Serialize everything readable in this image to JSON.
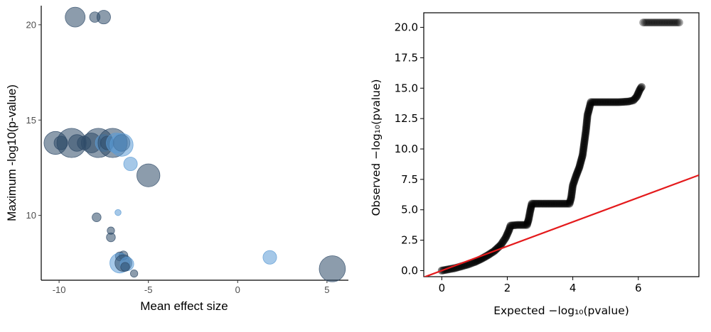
{
  "chart_data": [
    {
      "type": "scatter",
      "xlabel": "Mean effect size",
      "ylabel": "Maximum -log10(p-value)",
      "xlim": [
        -11,
        6.2
      ],
      "ylim": [
        6.6,
        21
      ],
      "xticks": [
        -10,
        -5,
        0,
        5
      ],
      "yticks": [
        10,
        15,
        20
      ],
      "grid": false,
      "colors": {
        "dark": "#2e4a68",
        "light": "#5b9bd5"
      },
      "points": [
        {
          "x": -9.1,
          "y": 20.4,
          "size": 5,
          "color": "dark"
        },
        {
          "x": -8.0,
          "y": 20.4,
          "size": 2,
          "color": "dark"
        },
        {
          "x": -7.5,
          "y": 20.4,
          "size": 3,
          "color": "dark"
        },
        {
          "x": -10.2,
          "y": 13.8,
          "size": 6,
          "color": "dark"
        },
        {
          "x": -9.9,
          "y": 13.8,
          "size": 3,
          "color": "dark"
        },
        {
          "x": -9.3,
          "y": 13.8,
          "size": 8,
          "color": "dark"
        },
        {
          "x": -9.0,
          "y": 13.8,
          "size": 4,
          "color": "dark"
        },
        {
          "x": -8.6,
          "y": 13.8,
          "size": 3,
          "color": "dark"
        },
        {
          "x": -8.2,
          "y": 13.8,
          "size": 5,
          "color": "dark"
        },
        {
          "x": -7.8,
          "y": 13.8,
          "size": 8,
          "color": "dark"
        },
        {
          "x": -7.5,
          "y": 13.8,
          "size": 4,
          "color": "light"
        },
        {
          "x": -7.3,
          "y": 13.8,
          "size": 3,
          "color": "dark"
        },
        {
          "x": -7.0,
          "y": 13.8,
          "size": 8,
          "color": "dark"
        },
        {
          "x": -6.8,
          "y": 13.8,
          "size": 5,
          "color": "light"
        },
        {
          "x": -6.5,
          "y": 13.8,
          "size": 4,
          "color": "dark"
        },
        {
          "x": -6.5,
          "y": 13.7,
          "size": 6,
          "color": "light"
        },
        {
          "x": -6.0,
          "y": 12.7,
          "size": 3,
          "color": "light"
        },
        {
          "x": -5.0,
          "y": 12.1,
          "size": 6,
          "color": "dark"
        },
        {
          "x": -7.9,
          "y": 9.9,
          "size": 1.5,
          "color": "dark"
        },
        {
          "x": -6.7,
          "y": 10.15,
          "size": 0.6,
          "color": "light"
        },
        {
          "x": -7.1,
          "y": 9.2,
          "size": 1,
          "color": "dark"
        },
        {
          "x": -7.1,
          "y": 8.85,
          "size": 1.5,
          "color": "dark"
        },
        {
          "x": -6.6,
          "y": 7.85,
          "size": 1.5,
          "color": "dark"
        },
        {
          "x": -6.4,
          "y": 7.9,
          "size": 1.5,
          "color": "dark"
        },
        {
          "x": -6.6,
          "y": 7.5,
          "size": 5,
          "color": "light"
        },
        {
          "x": -6.4,
          "y": 7.5,
          "size": 4,
          "color": "dark"
        },
        {
          "x": -6.2,
          "y": 7.45,
          "size": 3,
          "color": "light"
        },
        {
          "x": -6.3,
          "y": 7.3,
          "size": 1.5,
          "color": "dark"
        },
        {
          "x": -5.8,
          "y": 6.95,
          "size": 1,
          "color": "dark"
        },
        {
          "x": 1.8,
          "y": 7.8,
          "size": 3,
          "color": "light"
        },
        {
          "x": 5.3,
          "y": 7.2,
          "size": 7,
          "color": "dark"
        }
      ]
    },
    {
      "type": "scatter",
      "xlabel": "Expected −log₁₀(pvalue)",
      "ylabel": "Observed −log₁₀(pvalue)",
      "xlim": [
        -0.55,
        7.85
      ],
      "ylim": [
        -0.5,
        21.2
      ],
      "xticks": [
        0,
        2,
        4,
        6
      ],
      "yticks": [
        "0.0",
        "2.5",
        "5.0",
        "7.5",
        "10.0",
        "12.5",
        "15.0",
        "17.5",
        "20.0"
      ],
      "grid": false,
      "reference_line": {
        "from": [
          -0.55,
          -0.55
        ],
        "to": [
          7.85,
          7.85
        ],
        "color": "#e41a1c"
      },
      "point_color": "#000000",
      "qq_points": [
        [
          0,
          0
        ],
        [
          0.2,
          0.1
        ],
        [
          0.4,
          0.2
        ],
        [
          0.6,
          0.35
        ],
        [
          0.8,
          0.5
        ],
        [
          1.0,
          0.7
        ],
        [
          1.2,
          0.95
        ],
        [
          1.4,
          1.25
        ],
        [
          1.6,
          1.6
        ],
        [
          1.8,
          2.1
        ],
        [
          1.95,
          2.7
        ],
        [
          2.05,
          3.3
        ],
        [
          2.1,
          3.7
        ],
        [
          2.3,
          3.75
        ],
        [
          2.5,
          3.75
        ],
        [
          2.6,
          3.75
        ],
        [
          2.65,
          4.2
        ],
        [
          2.7,
          4.9
        ],
        [
          2.75,
          5.5
        ],
        [
          3.0,
          5.5
        ],
        [
          3.3,
          5.5
        ],
        [
          3.6,
          5.5
        ],
        [
          3.9,
          5.5
        ],
        [
          3.95,
          6.0
        ],
        [
          4.0,
          7.0
        ],
        [
          4.1,
          7.8
        ],
        [
          4.2,
          8.5
        ],
        [
          4.3,
          9.5
        ],
        [
          4.35,
          10.5
        ],
        [
          4.4,
          11.5
        ],
        [
          4.45,
          12.8
        ],
        [
          4.5,
          13.3
        ],
        [
          4.55,
          13.85
        ],
        [
          4.8,
          13.85
        ],
        [
          5.1,
          13.85
        ],
        [
          5.4,
          13.85
        ],
        [
          5.7,
          13.9
        ],
        [
          5.85,
          14.0
        ],
        [
          5.95,
          14.3
        ],
        [
          6.05,
          14.9
        ],
        [
          6.1,
          15.1
        ],
        [
          6.15,
          20.4
        ],
        [
          6.25,
          20.4
        ],
        [
          6.35,
          20.4
        ],
        [
          6.5,
          20.4
        ],
        [
          6.65,
          20.4
        ],
        [
          7.25,
          20.4
        ]
      ]
    }
  ]
}
